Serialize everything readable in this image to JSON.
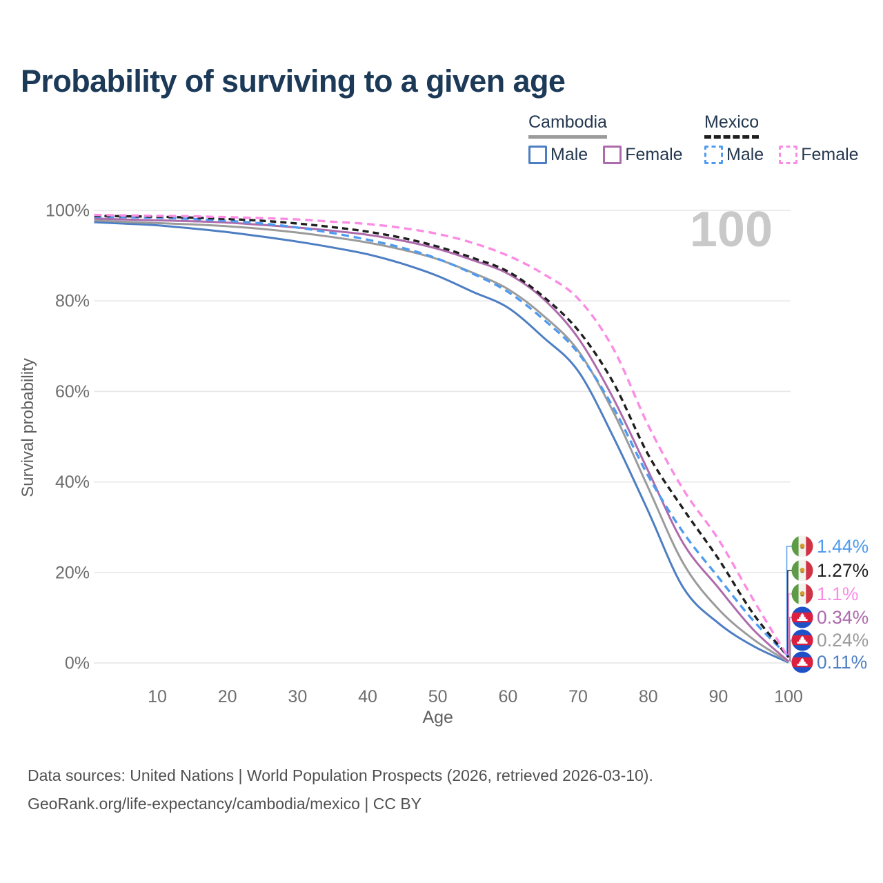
{
  "title": "Probability of surviving to a given age",
  "legend": {
    "groups": [
      {
        "name": "Cambodia",
        "line_style": "solid",
        "line_color": "#9b9b9b",
        "items": [
          {
            "label": "Male",
            "color": "#4d7ec3",
            "dashed": false
          },
          {
            "label": "Female",
            "color": "#ae6bac",
            "dashed": false
          }
        ]
      },
      {
        "name": "Mexico",
        "line_style": "dashed",
        "line_color": "#1f1f1f",
        "items": [
          {
            "label": "Male",
            "color": "#4f9bef",
            "dashed": true
          },
          {
            "label": "Female",
            "color": "#fb8ce4",
            "dashed": true
          }
        ]
      }
    ]
  },
  "chart_data": {
    "type": "line",
    "title": "Probability of surviving to a given age",
    "xlabel": "Age",
    "ylabel": "Survival probability",
    "xlim": [
      1,
      100
    ],
    "ylim": [
      0,
      100
    ],
    "grid": "horizontal",
    "legend_position": "top-right",
    "watermark": "100",
    "x_ticks": [
      10,
      20,
      30,
      40,
      50,
      60,
      70,
      80,
      90,
      100
    ],
    "y_tick_values": [
      0,
      20,
      40,
      60,
      80,
      100
    ],
    "y_tick_labels": [
      "0%",
      "20%",
      "40%",
      "60%",
      "80%",
      "100%"
    ],
    "ages": [
      1,
      5,
      10,
      15,
      20,
      25,
      30,
      35,
      40,
      45,
      50,
      55,
      60,
      65,
      70,
      75,
      80,
      85,
      90,
      95,
      100
    ],
    "series": [
      {
        "name": "Cambodia Male",
        "country": "Cambodia",
        "sex": "Male",
        "color": "#4d7ec3",
        "dashed": false,
        "values": [
          97.4,
          97.1,
          96.7,
          96.0,
          95.2,
          94.2,
          93.1,
          91.8,
          90.3,
          88.2,
          85.5,
          82.0,
          78.5,
          72.0,
          64.5,
          50.0,
          33.5,
          16.6,
          8.8,
          3.7,
          0.11
        ]
      },
      {
        "name": "Cambodia",
        "country": "Cambodia",
        "sex": "Both",
        "color": "#9b9b9b",
        "dashed": false,
        "values": [
          97.8,
          97.5,
          97.2,
          96.9,
          96.5,
          95.9,
          95.1,
          94.1,
          92.9,
          91.3,
          89.2,
          86.2,
          82.6,
          76.8,
          69.0,
          55.5,
          38.7,
          22.0,
          11.9,
          5.2,
          0.24
        ]
      },
      {
        "name": "Cambodia Female",
        "country": "Cambodia",
        "sex": "Female",
        "color": "#ae6bac",
        "dashed": false,
        "values": [
          98.2,
          98.0,
          97.8,
          97.6,
          97.3,
          96.8,
          96.2,
          95.5,
          94.6,
          93.3,
          91.5,
          89.0,
          86.0,
          80.5,
          71.8,
          58.5,
          42.4,
          26.4,
          16.6,
          7.3,
          0.34
        ]
      },
      {
        "name": "Mexico Male",
        "country": "Mexico",
        "sex": "Male",
        "color": "#4f9bef",
        "dashed": true,
        "dash": "11 7",
        "values": [
          98.6,
          98.5,
          98.4,
          98.1,
          97.7,
          97.1,
          96.2,
          95.0,
          93.5,
          91.7,
          89.3,
          86.0,
          82.0,
          76.0,
          68.5,
          56.5,
          41.3,
          28.8,
          18.9,
          9.3,
          1.44
        ]
      },
      {
        "name": "Mexico",
        "country": "Mexico",
        "sex": "Both",
        "color": "#1f1f1f",
        "dashed": true,
        "dash": "9 6",
        "values": [
          98.8,
          98.7,
          98.6,
          98.4,
          98.1,
          97.7,
          97.1,
          96.3,
          95.3,
          93.9,
          92.0,
          89.5,
          86.5,
          81.0,
          73.5,
          62.0,
          46.0,
          34.0,
          23.0,
          10.8,
          1.27
        ]
      },
      {
        "name": "Mexico Female",
        "country": "Mexico",
        "sex": "Female",
        "color": "#fb8ce4",
        "dashed": true,
        "dash": "11 7",
        "values": [
          99.0,
          98.9,
          98.8,
          98.7,
          98.5,
          98.3,
          98.0,
          97.5,
          97.0,
          96.1,
          94.8,
          92.8,
          90.0,
          86.0,
          80.5,
          69.5,
          52.5,
          38.3,
          27.3,
          13.9,
          1.1
        ]
      }
    ],
    "end_labels": [
      {
        "text": "1.44%",
        "series": "Mexico Male",
        "flag": "mexico",
        "color": "#4f9bef"
      },
      {
        "text": "1.27%",
        "series": "Mexico",
        "flag": "mexico",
        "color": "#1f1f1f"
      },
      {
        "text": "1.1%",
        "series": "Mexico Female",
        "flag": "mexico",
        "color": "#fb8ce4"
      },
      {
        "text": "0.34%",
        "series": "Cambodia Female",
        "flag": "cambodia",
        "color": "#ae6bac"
      },
      {
        "text": "0.24%",
        "series": "Cambodia",
        "flag": "cambodia",
        "color": "#9b9b9b"
      },
      {
        "text": "0.11%",
        "series": "Cambodia Male",
        "flag": "cambodia",
        "color": "#4d7ec3"
      }
    ]
  },
  "footer": {
    "line1": "Data sources: United Nations | World Population Prospects (2026, retrieved 2026-03-10).",
    "line2": "GeoRank.org/life-expectancy/cambodia/mexico | CC BY"
  }
}
